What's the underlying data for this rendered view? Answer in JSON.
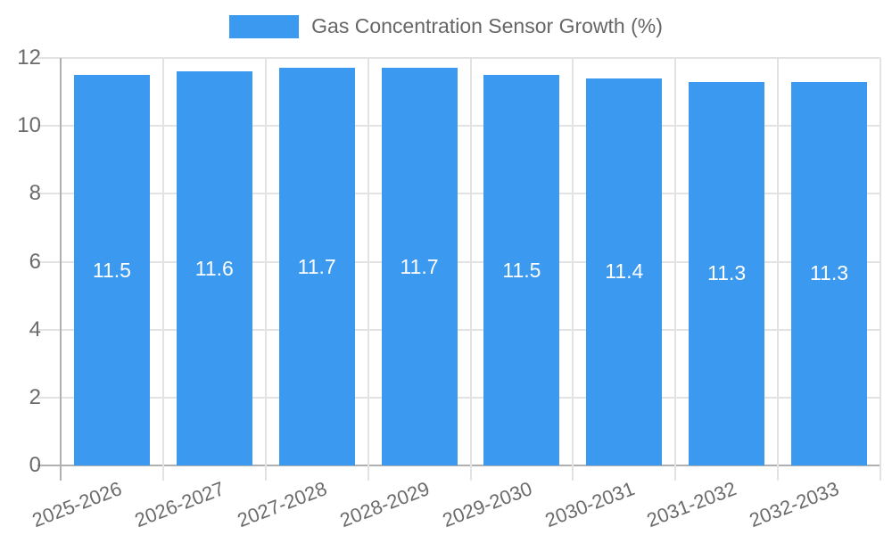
{
  "legend": {
    "label": "Gas Concentration Sensor Growth (%)",
    "swatch_color": "#3b99f0"
  },
  "chart_data": {
    "type": "bar",
    "title": "Gas Concentration Sensor Growth (%)",
    "categories": [
      "2025-2026",
      "2026-2027",
      "2027-2028",
      "2028-2029",
      "2029-2030",
      "2030-2031",
      "2031-2032",
      "2032-2033"
    ],
    "values": [
      11.5,
      11.6,
      11.7,
      11.7,
      11.5,
      11.4,
      11.3,
      11.3
    ],
    "xlabel": "",
    "ylabel": "",
    "ylim": [
      0,
      12
    ],
    "yticks": [
      0,
      2,
      4,
      6,
      8,
      10,
      12
    ],
    "grid": true,
    "legend_position": "top",
    "bar_color": "#3b99f0",
    "value_label_color": "#ffffff",
    "tick_label_color": "#6b6b6b",
    "gridline_color": "#e3e3e3",
    "axis_line_color": "#b0b0b0"
  }
}
